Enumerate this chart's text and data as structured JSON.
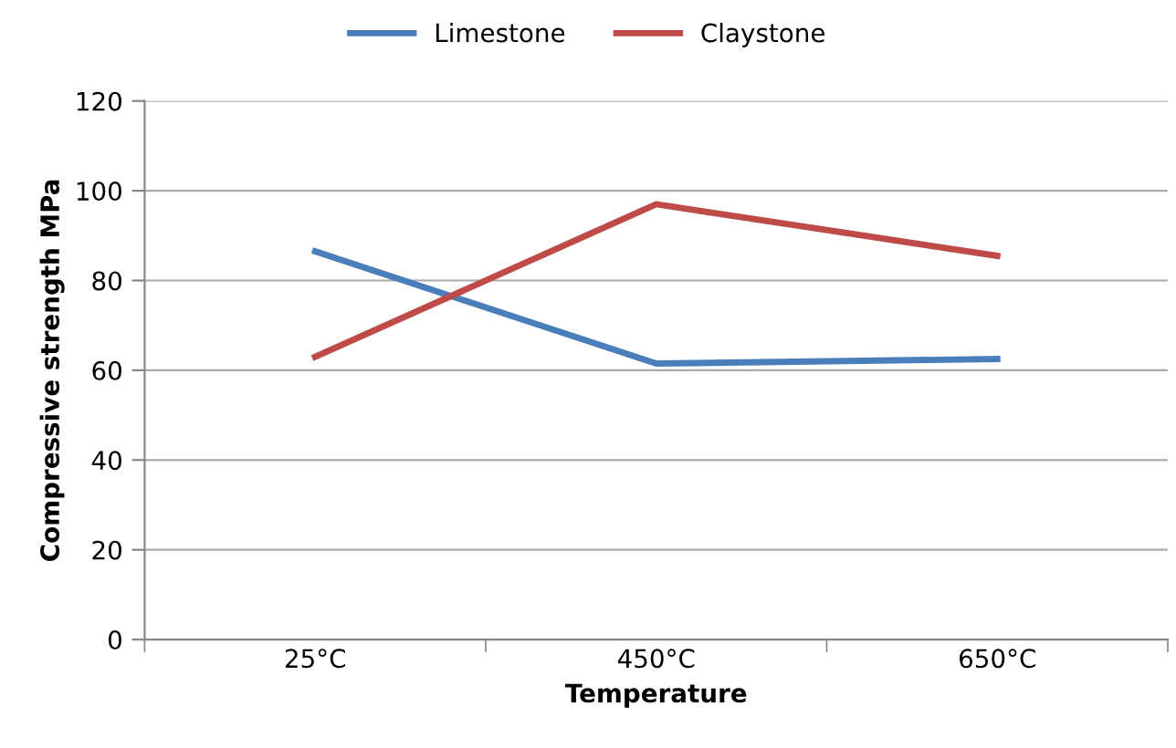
{
  "chart_data": {
    "type": "line",
    "xlabel": "Temperature",
    "ylabel": "Compressive strength MPa",
    "categories": [
      "25°C",
      "450°C",
      "650°C"
    ],
    "series": [
      {
        "name": "Limestone",
        "color": "#4a7ebb",
        "values": [
          86.5,
          61.5,
          62.5
        ]
      },
      {
        "name": "Claystone",
        "color": "#be4b48",
        "values": [
          63,
          97,
          85.5
        ]
      }
    ],
    "ylim": [
      0,
      120
    ],
    "yticks": [
      0,
      20,
      40,
      60,
      80,
      100,
      120
    ],
    "grid": "y",
    "legend": "top",
    "marker": "none",
    "line_style": "solid"
  }
}
